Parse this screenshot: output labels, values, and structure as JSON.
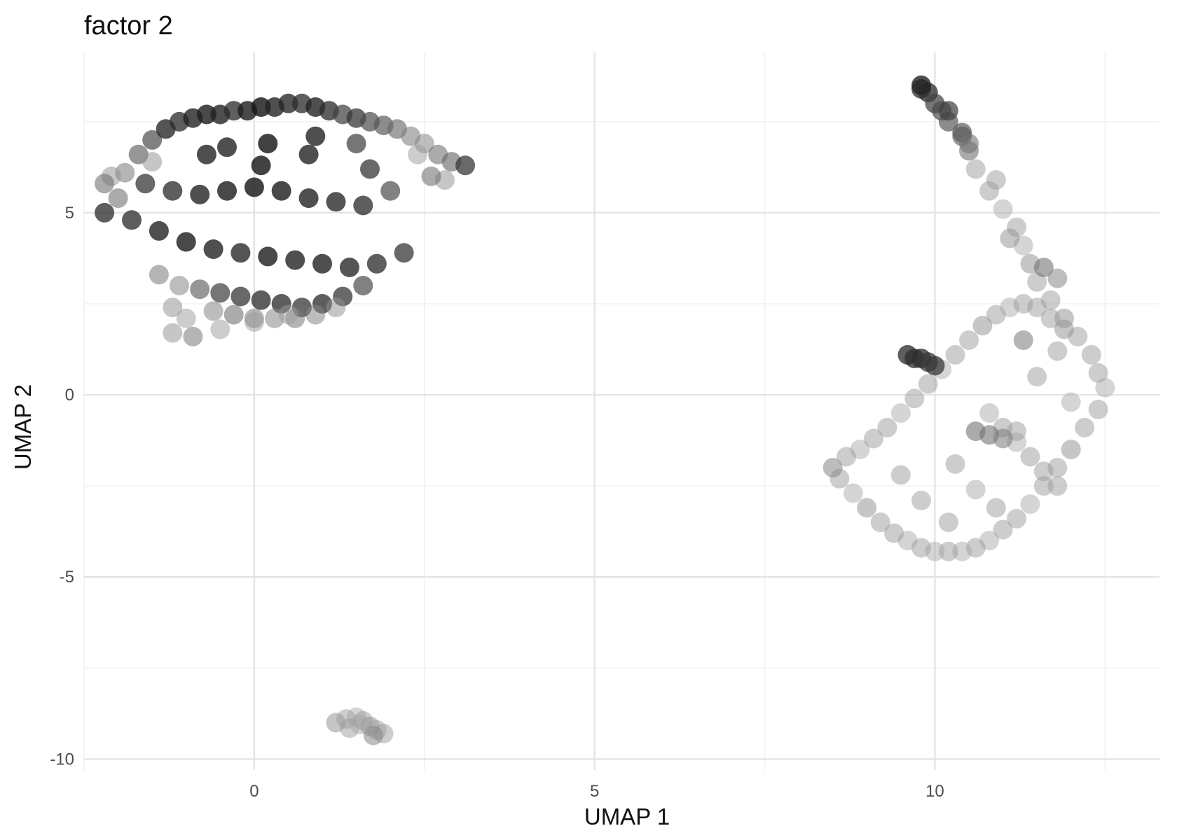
{
  "chart_data": {
    "type": "scatter",
    "title": "factor  2",
    "xlabel": "UMAP 1",
    "ylabel": "UMAP 2",
    "xlim": [
      -2.5,
      13.3
    ],
    "ylim": [
      -10.3,
      9.4
    ],
    "x_ticks": [
      0,
      5,
      10
    ],
    "x_tick_labels": [
      "0",
      "5",
      "10"
    ],
    "y_ticks": [
      5,
      0,
      -5,
      -10
    ],
    "y_tick_labels": [
      "5",
      "0",
      "-5",
      "-10"
    ],
    "x_minor": [
      -2.5,
      2.5,
      7.5,
      12.5
    ],
    "y_minor": [
      7.5,
      2.5,
      -2.5,
      -7.5
    ],
    "grid": true,
    "legend": "none",
    "point_color": "#000000",
    "clusters": [
      {
        "name": "",
        "x": [
          -2.2,
          -2.0,
          -1.9,
          -1.7,
          -1.5,
          -1.3,
          -1.1,
          -0.9,
          -0.7,
          -0.5,
          -0.3,
          -0.1,
          0.1,
          0.3,
          0.5,
          0.7,
          0.9,
          1.1,
          1.3,
          1.5,
          1.7,
          1.9,
          2.1,
          2.3,
          2.5,
          2.7,
          2.9,
          3.1,
          -2.1,
          -1.8,
          -1.4,
          -1.0,
          -0.6,
          -0.2,
          0.2,
          0.6,
          1.0,
          1.4,
          1.8,
          2.2,
          -1.6,
          -1.2,
          -0.8,
          -0.4,
          0.0,
          0.4,
          0.8,
          1.2,
          1.6,
          2.0,
          -1.4,
          -1.1,
          -0.8,
          -0.5,
          -0.2,
          0.1,
          0.4,
          0.7,
          1.0,
          1.3,
          1.6,
          -1.2,
          -1.0,
          -0.6,
          -0.3,
          0.0,
          0.3,
          0.6,
          0.9,
          1.2,
          -1.2,
          -0.9,
          -0.5,
          0.0,
          0.5,
          -0.4,
          0.2,
          0.8,
          1.5,
          2.4,
          2.8,
          -2.2,
          -1.5,
          -0.7,
          0.1,
          0.9,
          1.7,
          2.6
        ],
        "y": [
          5.0,
          5.4,
          6.1,
          6.6,
          7.0,
          7.3,
          7.5,
          7.6,
          7.7,
          7.7,
          7.8,
          7.8,
          7.9,
          7.9,
          8.0,
          8.0,
          7.9,
          7.8,
          7.7,
          7.6,
          7.5,
          7.4,
          7.3,
          7.1,
          6.9,
          6.6,
          6.4,
          6.3,
          6.0,
          4.8,
          4.5,
          4.2,
          4.0,
          3.9,
          3.8,
          3.7,
          3.6,
          3.5,
          3.6,
          3.9,
          5.8,
          5.6,
          5.5,
          5.6,
          5.7,
          5.6,
          5.4,
          5.3,
          5.2,
          5.6,
          3.3,
          3.0,
          2.9,
          2.8,
          2.7,
          2.6,
          2.5,
          2.4,
          2.5,
          2.7,
          3.0,
          2.4,
          2.1,
          2.3,
          2.2,
          2.1,
          2.1,
          2.1,
          2.2,
          2.4,
          1.7,
          1.6,
          1.8,
          2.0,
          2.2,
          6.8,
          6.9,
          6.6,
          6.9,
          6.6,
          5.9,
          5.8,
          6.4,
          6.6,
          6.3,
          7.1,
          6.2,
          6.0
        ],
        "v": [
          0.85,
          0.5,
          0.45,
          0.6,
          0.7,
          0.88,
          0.85,
          0.9,
          0.92,
          0.9,
          0.85,
          0.92,
          0.95,
          0.9,
          0.88,
          0.85,
          0.9,
          0.85,
          0.75,
          0.8,
          0.7,
          0.65,
          0.55,
          0.45,
          0.4,
          0.5,
          0.55,
          0.8,
          0.35,
          0.85,
          0.9,
          0.92,
          0.9,
          0.88,
          0.92,
          0.9,
          0.9,
          0.88,
          0.85,
          0.8,
          0.8,
          0.85,
          0.9,
          0.92,
          0.95,
          0.92,
          0.9,
          0.88,
          0.85,
          0.7,
          0.45,
          0.4,
          0.6,
          0.75,
          0.8,
          0.85,
          0.85,
          0.8,
          0.85,
          0.8,
          0.7,
          0.35,
          0.3,
          0.4,
          0.5,
          0.45,
          0.4,
          0.45,
          0.4,
          0.35,
          0.35,
          0.45,
          0.3,
          0.3,
          0.3,
          0.9,
          0.95,
          0.9,
          0.75,
          0.3,
          0.35,
          0.5,
          0.35,
          0.9,
          0.95,
          0.9,
          0.8,
          0.5
        ]
      },
      {
        "name": "",
        "x": [
          9.8,
          9.9,
          10.0,
          10.1,
          10.2,
          10.4,
          10.5,
          10.6,
          10.8,
          11.0,
          11.2,
          11.3,
          11.4,
          11.5,
          11.7,
          11.9,
          12.1,
          12.3,
          12.4,
          12.5,
          12.4,
          12.2,
          12.0,
          11.8,
          11.6,
          11.4,
          11.2,
          11.0,
          10.8,
          10.6,
          10.4,
          10.2,
          10.0,
          9.8,
          9.6,
          9.4,
          9.2,
          9.0,
          8.8,
          8.6,
          8.5,
          8.7,
          8.9,
          9.1,
          9.3,
          9.5,
          9.7,
          9.9,
          10.1,
          10.3,
          10.5,
          10.7,
          10.9,
          11.1,
          11.3,
          11.5,
          11.7,
          11.9,
          10.8,
          11.0,
          11.2,
          11.4,
          11.6,
          11.8,
          12.0,
          10.3,
          10.6,
          10.9,
          11.2,
          11.5,
          11.8,
          9.6,
          9.7,
          9.8,
          9.9,
          10.0,
          9.8,
          10.2,
          10.4,
          10.5,
          10.9,
          11.1,
          11.6,
          11.8,
          11.3,
          10.6,
          10.8,
          11.0,
          9.5,
          9.8,
          10.2
        ],
        "y": [
          8.4,
          8.3,
          8.0,
          7.8,
          7.5,
          7.1,
          6.7,
          6.2,
          5.6,
          5.1,
          4.6,
          4.1,
          3.6,
          3.1,
          2.6,
          2.1,
          1.6,
          1.1,
          0.6,
          0.2,
          -0.4,
          -0.9,
          -1.5,
          -2.0,
          -2.5,
          -3.0,
          -3.4,
          -3.7,
          -4.0,
          -4.2,
          -4.3,
          -4.3,
          -4.3,
          -4.2,
          -4.0,
          -3.8,
          -3.5,
          -3.1,
          -2.7,
          -2.3,
          -2.0,
          -1.7,
          -1.5,
          -1.2,
          -0.9,
          -0.5,
          -0.1,
          0.3,
          0.7,
          1.1,
          1.5,
          1.9,
          2.2,
          2.4,
          2.5,
          2.4,
          2.1,
          1.8,
          -0.5,
          -0.9,
          -1.3,
          -1.7,
          -2.1,
          -2.5,
          -0.2,
          -1.9,
          -2.6,
          -3.1,
          -1.0,
          0.5,
          1.2,
          1.1,
          1.0,
          1.0,
          0.9,
          0.8,
          8.5,
          7.8,
          7.2,
          6.9,
          5.9,
          4.3,
          3.5,
          3.2,
          1.5,
          -1.0,
          -1.1,
          -1.2,
          -2.2,
          -2.9,
          -3.5
        ],
        "v": [
          0.85,
          0.85,
          0.75,
          0.7,
          0.65,
          0.6,
          0.5,
          0.3,
          0.3,
          0.25,
          0.3,
          0.25,
          0.35,
          0.3,
          0.3,
          0.35,
          0.3,
          0.3,
          0.3,
          0.25,
          0.3,
          0.3,
          0.35,
          0.3,
          0.3,
          0.25,
          0.3,
          0.3,
          0.25,
          0.3,
          0.25,
          0.3,
          0.25,
          0.3,
          0.25,
          0.3,
          0.3,
          0.35,
          0.25,
          0.3,
          0.4,
          0.3,
          0.25,
          0.3,
          0.3,
          0.25,
          0.3,
          0.3,
          0.25,
          0.3,
          0.3,
          0.35,
          0.3,
          0.25,
          0.3,
          0.3,
          0.3,
          0.35,
          0.25,
          0.3,
          0.25,
          0.3,
          0.3,
          0.3,
          0.25,
          0.3,
          0.25,
          0.3,
          0.3,
          0.3,
          0.3,
          0.85,
          0.85,
          0.85,
          0.8,
          0.8,
          0.9,
          0.75,
          0.65,
          0.5,
          0.3,
          0.35,
          0.5,
          0.4,
          0.45,
          0.5,
          0.5,
          0.45,
          0.3,
          0.3,
          0.3
        ]
      },
      {
        "name": "",
        "x": [
          1.2,
          1.35,
          1.5,
          1.6,
          1.7,
          1.8,
          1.9,
          1.75,
          1.4,
          1.55
        ],
        "y": [
          -9.0,
          -8.9,
          -8.85,
          -8.95,
          -9.1,
          -9.2,
          -9.3,
          -9.35,
          -9.15,
          -9.05
        ],
        "v": [
          0.35,
          0.3,
          0.25,
          0.3,
          0.35,
          0.3,
          0.3,
          0.4,
          0.3,
          0.25
        ]
      }
    ]
  }
}
